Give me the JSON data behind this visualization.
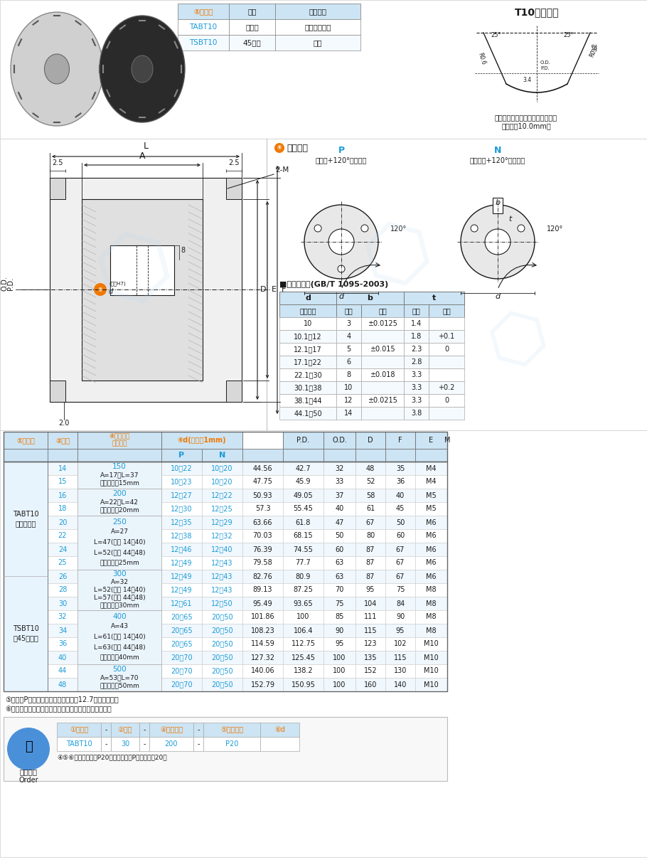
{
  "bg_color": "#ffffff",
  "header_bg": "#cce4f4",
  "blue_text": "#1a9bd7",
  "orange_text": "#f07800",
  "dark": "#1a1a1a",
  "gray_fill": "#e8e8e8",
  "light_fill": "#f5f5f5",
  "table1_headers": [
    "①类型码",
    "材质",
    "表面处理"
  ],
  "table1_data": [
    [
      "TABT10",
      "铝合金",
      "本色阳极氧化"
    ],
    [
      "TSBT10",
      "45号锆",
      "发黑"
    ]
  ],
  "tooth_title": "T10标准齿形",
  "tooth_note1": "齿槽尺寸会因齿数不同而略有差异",
  "tooth_note2": "（齿距：10.0mm）",
  "shaft_title": "⑤轴孔类型",
  "shaft_P_label": "P",
  "shaft_P_desc": "（圆孔+120°螺纹孔）",
  "shaft_N_label": "N",
  "shaft_N_desc": "（键槽孔+120°螺纹孔）",
  "key_table_title": "■键槽尺寸表(GB/T 1095-2003)",
  "key_table_subheaders": [
    "轴孔内径",
    "尺寸",
    "公差",
    "尺寸",
    "公差"
  ],
  "key_table_data": [
    [
      "10",
      "3",
      "±0.0125",
      "1.4",
      ""
    ],
    [
      "10.1～12",
      "4",
      "",
      "1.8",
      "+0.1"
    ],
    [
      "12.1～17",
      "5",
      "±0.015",
      "2.3",
      "0"
    ],
    [
      "17.1～22",
      "6",
      "",
      "2.8",
      ""
    ],
    [
      "22.1～30",
      "8",
      "±0.018",
      "3.3",
      ""
    ],
    [
      "30.1～38",
      "10",
      "",
      "3.3",
      "+0.2"
    ],
    [
      "38.1～44",
      "12",
      "±0.0215",
      "3.3",
      "0"
    ],
    [
      "44.1～50",
      "14",
      "",
      "3.8",
      ""
    ]
  ],
  "main_cols_w": [
    62,
    42,
    118,
    57,
    57,
    57,
    57,
    45,
    42,
    42,
    45
  ],
  "main_hdr1": [
    "①类型码",
    "②齿数",
    "④宽度代码\n（公制）",
    "⑥d(步进值1mm)",
    "",
    "P.D.",
    "O.D.",
    "D",
    "F",
    "E",
    "M"
  ],
  "main_hdr_spans": [
    1,
    1,
    1,
    2,
    0,
    1,
    1,
    1,
    1,
    1,
    1
  ],
  "main_rows": [
    [
      "",
      "14",
      "150",
      "10～22",
      "10～20",
      "44.56",
      "42.7",
      "32",
      "48",
      "35",
      "M4"
    ],
    [
      "",
      "15",
      "",
      "10～23",
      "10～20",
      "47.75",
      "45.9",
      "33",
      "52",
      "36",
      "M4"
    ],
    [
      "",
      "16",
      "200",
      "12～27",
      "12～22",
      "50.93",
      "49.05",
      "37",
      "58",
      "40",
      "M5"
    ],
    [
      "",
      "18",
      "",
      "12～30",
      "12～25",
      "57.3",
      "55.45",
      "40",
      "61",
      "45",
      "M5"
    ],
    [
      "",
      "20",
      "250",
      "12～35",
      "12～29",
      "63.66",
      "61.8",
      "47",
      "67",
      "50",
      "M6"
    ],
    [
      "",
      "22",
      "",
      "12～38",
      "12～32",
      "70.03",
      "68.15",
      "50",
      "80",
      "60",
      "M6"
    ],
    [
      "",
      "24",
      "",
      "12～46",
      "12～40",
      "76.39",
      "74.55",
      "60",
      "87",
      "67",
      "M6"
    ],
    [
      "",
      "25",
      "",
      "12～49",
      "12～43",
      "79.58",
      "77.7",
      "63",
      "87",
      "67",
      "M6"
    ],
    [
      "",
      "26",
      "300",
      "12～49",
      "12～43",
      "82.76",
      "80.9",
      "63",
      "87",
      "67",
      "M6"
    ],
    [
      "",
      "28",
      "",
      "12～49",
      "12～43",
      "89.13",
      "87.25",
      "70",
      "95",
      "75",
      "M8"
    ],
    [
      "",
      "30",
      "",
      "12～61",
      "12～50",
      "95.49",
      "93.65",
      "75",
      "104",
      "84",
      "M8"
    ],
    [
      "",
      "32",
      "400",
      "20～65",
      "20～50",
      "101.86",
      "100",
      "85",
      "111",
      "90",
      "M8"
    ],
    [
      "",
      "34",
      "",
      "20～65",
      "20～50",
      "108.23",
      "106.4",
      "90",
      "115",
      "95",
      "M8"
    ],
    [
      "",
      "36",
      "",
      "20～65",
      "20～50",
      "114.59",
      "112.75",
      "95",
      "123",
      "102",
      "M10"
    ],
    [
      "",
      "40",
      "",
      "20～70",
      "20～50",
      "127.32",
      "125.45",
      "100",
      "135",
      "115",
      "M10"
    ],
    [
      "",
      "44",
      "500",
      "20～70",
      "20～50",
      "140.06",
      "138.2",
      "100",
      "152",
      "130",
      "M10"
    ],
    [
      "",
      "48",
      "",
      "20～70",
      "20～50",
      "152.79",
      "150.95",
      "100",
      "160",
      "140",
      "M10"
    ]
  ],
  "col2_groups": [
    [
      0,
      1,
      "150",
      "A=17，L=37",
      "皮带宽度：15mm"
    ],
    [
      2,
      3,
      "200",
      "A=22，L=42",
      "皮带宽度：20mm"
    ],
    [
      4,
      7,
      "250",
      "A=27",
      "L=47(齿数 14～40)",
      "L=52(齿数 44～48)",
      "皮带宽度：25mm"
    ],
    [
      8,
      10,
      "300",
      "A=32",
      "L=52(齿数 14～40)",
      "L=57(齿数 44～48)",
      "皮带宽度：30mm"
    ],
    [
      11,
      14,
      "400",
      "A=43",
      "L=61(齿数 14～40)",
      "L=63(齿数 44～48)",
      "皮带宽度：40mm"
    ],
    [
      15,
      16,
      "500",
      "A=53，L=70",
      "皮带宽度：50mm"
    ]
  ],
  "type_col1": "TABT10\n（铝合金）",
  "type_col2": "TSBT10\n（45号锆）",
  "footnote1": "⑤内孔为P型时，在许可范围内可选戙12.7的内孔尺寸。",
  "footnote2": "⑥只有齿形及宽度代码相同的带轮和皮带才能配套使用。",
  "order_label1": "①类型码",
  "order_label2": "②齿数",
  "order_label3": "④宽度代码",
  "order_label4": "⑤轴孔类型",
  "order_label5": "⑥d",
  "order_val1": "TABT10",
  "order_val2": "30",
  "order_val3": "200",
  "order_val4": "P20",
  "order_title": "订购范例",
  "order_subtitle": "Order",
  "order_note": "④⑤⑥步合并编写，P20表示孔类型是P型，孔径是20。"
}
